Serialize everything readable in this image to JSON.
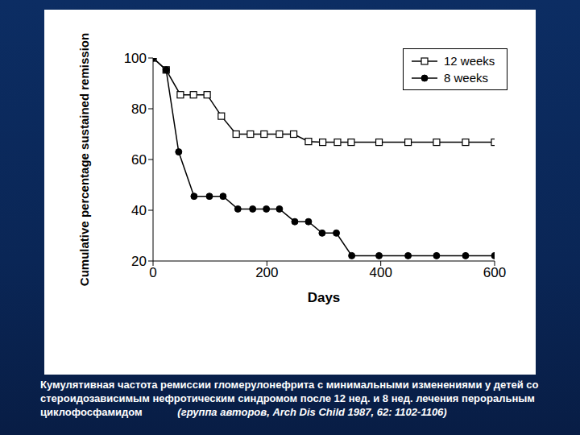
{
  "chart_data": {
    "type": "line",
    "caption": "Кумулятивная частота ремиссии гломерулонефрита с минимальными изменениями у детей со стероидозависимым нефротическим синдромом после 12 нед. и 8 нед. лечения пероральным циклофосфамидом",
    "source": "(группа авторов, Arch Dis Child 1987, 62: 1102-1106)",
    "x_label": "Days",
    "y_label": "Cumulative percentage sustained remission",
    "xlim": [
      0,
      600
    ],
    "xticks": [
      0,
      200,
      400,
      600
    ],
    "ylim": [
      20,
      100
    ],
    "yticks": [
      20,
      40,
      60,
      80,
      100
    ],
    "grid": false,
    "legend": "upper right",
    "series": [
      {
        "name": "12 weeks",
        "color": "#000000",
        "marker": "square_open",
        "line_style": "solid",
        "x": [
          0,
          23,
          48,
          71,
          95,
          120,
          146,
          171,
          195,
          222,
          247,
          273,
          298,
          324,
          348,
          397,
          448,
          498,
          549,
          600
        ],
        "values": [
          100,
          95.3,
          85.5,
          85.5,
          85.5,
          77.1,
          70,
          70,
          70,
          70,
          70,
          67.1,
          66.8,
          66.8,
          66.8,
          66.8,
          66.8,
          66.8,
          66.8,
          66.8
        ]
      },
      {
        "name": "8 weeks",
        "color": "#000000",
        "marker": "circle",
        "line_style": "solid",
        "x": [
          0,
          23,
          45,
          72,
          99,
          123,
          149,
          175,
          199,
          222,
          249,
          273,
          297,
          322,
          349,
          397,
          448,
          498,
          549,
          600
        ],
        "values": [
          100,
          95.3,
          63,
          45.5,
          45.5,
          45.5,
          40.5,
          40.5,
          40.5,
          40.5,
          35.5,
          35.5,
          31,
          31,
          22.1,
          22.1,
          22.1,
          22.1,
          22.1,
          22.1
        ]
      }
    ]
  }
}
